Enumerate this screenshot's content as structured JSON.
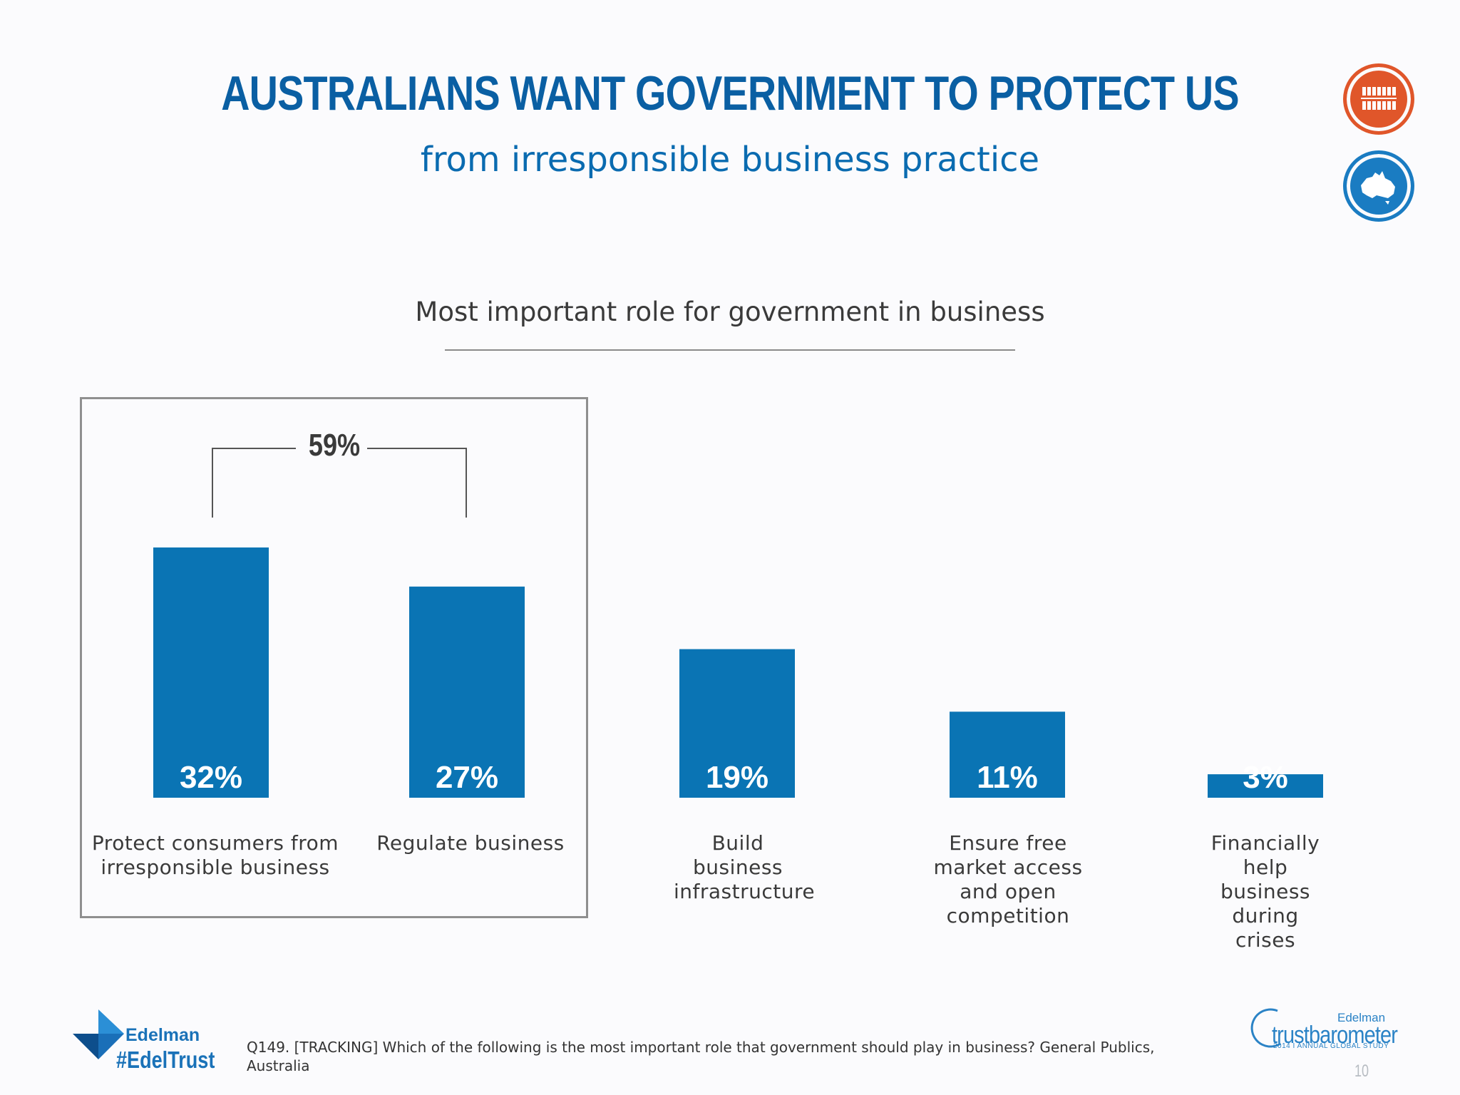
{
  "header": {
    "title": "AUSTRALIANS WANT GOVERNMENT TO PROTECT US",
    "subtitle": "from irresponsible business practice"
  },
  "icons": {
    "top": "people-group-icon",
    "bottom": "australia-map-icon"
  },
  "colors": {
    "title": "#0a5fa3",
    "bar": "#0a74b4",
    "people_icon": "#e0562a",
    "australia_icon": "#1a7cc2"
  },
  "chart_data": {
    "type": "bar",
    "title": "Most important role for government in business",
    "categories": [
      "Protect consumers from irresponsible business",
      "Regulate business",
      "Build business infrastructure",
      "Ensure free market access and open competition",
      "Financially help business during crises"
    ],
    "values": [
      32,
      27,
      19,
      11,
      3
    ],
    "value_labels": [
      "32%",
      "27%",
      "19%",
      "11%",
      "3%"
    ],
    "combined_label": "59%",
    "grid": false
  },
  "footer": {
    "brand": "Edelman",
    "hashtag": "#EdelTrust",
    "footnote": "Q149. [TRACKING] Which of the following is the most important role that government should play in business? General Publics, Australia",
    "trustbarometer_brand": "Edelman",
    "trustbarometer_name": "trustbarometer",
    "trustbarometer_study": "2014 I ANNUAL GLOBAL STUDY",
    "page_number": "10"
  }
}
